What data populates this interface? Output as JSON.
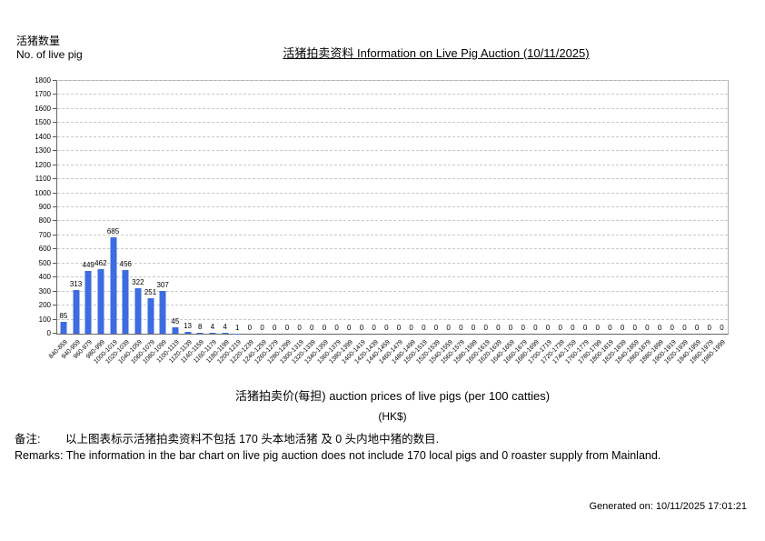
{
  "header": {
    "y_axis_title_zh": "活猪数量",
    "y_axis_title_en": "No. of live pig",
    "title": "活猪拍卖资料 Information on Live Pig Auction (10/11/2025)"
  },
  "footer": {
    "x_axis_title": "活猪拍卖价(每担) auction prices of live pigs (per 100 catties)",
    "x_axis_unit": "(HK$)",
    "remark_zh_label": "备注:",
    "remark_zh": "以上图表标示活猪拍卖资料不包括 170 头本地活猪 及 0 头内地中猪的数目.",
    "remark_en": "Remarks: The information in the bar chart on live pig auction does not include 170 local pigs and 0 roaster supply from Mainland.",
    "generated_on": "Generated on: 10/11/2025 17:01:21"
  },
  "chart_data": {
    "type": "bar",
    "title": "活猪拍卖资料 Information on Live Pig Auction (10/11/2025)",
    "xlabel": "活猪拍卖价(每担) auction prices of live pigs (per 100 catties) (HK$)",
    "ylabel": "活猪数量 No. of live pig",
    "ylim": [
      0,
      1800
    ],
    "ytick_step": 100,
    "grid": "horizontal-dashed",
    "legend": "none",
    "bar_color": "#3d6be0",
    "categories": [
      "840-859",
      "940-959",
      "960-979",
      "980-999",
      "1000-1019",
      "1020-1039",
      "1040-1059",
      "1060-1079",
      "1080-1099",
      "1100-1119",
      "1120-1139",
      "1140-1159",
      "1160-1179",
      "1180-1199",
      "1200-1219",
      "1220-1239",
      "1240-1259",
      "1260-1279",
      "1280-1299",
      "1300-1319",
      "1320-1339",
      "1340-1359",
      "1360-1379",
      "1380-1399",
      "1400-1419",
      "1420-1439",
      "1440-1459",
      "1460-1479",
      "1480-1499",
      "1500-1519",
      "1520-1539",
      "1540-1559",
      "1560-1579",
      "1580-1599",
      "1600-1619",
      "1620-1639",
      "1640-1659",
      "1660-1679",
      "1680-1699",
      "1700-1719",
      "1720-1739",
      "1740-1759",
      "1760-1779",
      "1780-1799",
      "1800-1819",
      "1820-1839",
      "1840-1859",
      "1860-1879",
      "1880-1899",
      "1900-1919",
      "1920-1939",
      "1940-1959",
      "1960-1979",
      "1980-1999"
    ],
    "values": [
      85,
      313,
      449,
      462,
      685,
      456,
      322,
      251,
      307,
      45,
      13,
      8,
      4,
      4,
      1,
      0,
      0,
      0,
      0,
      0,
      0,
      0,
      0,
      0,
      0,
      0,
      0,
      0,
      0,
      0,
      0,
      0,
      0,
      0,
      0,
      0,
      0,
      0,
      0,
      0,
      0,
      0,
      0,
      0,
      0,
      0,
      0,
      0,
      0,
      0,
      0,
      0,
      0,
      0
    ]
  }
}
